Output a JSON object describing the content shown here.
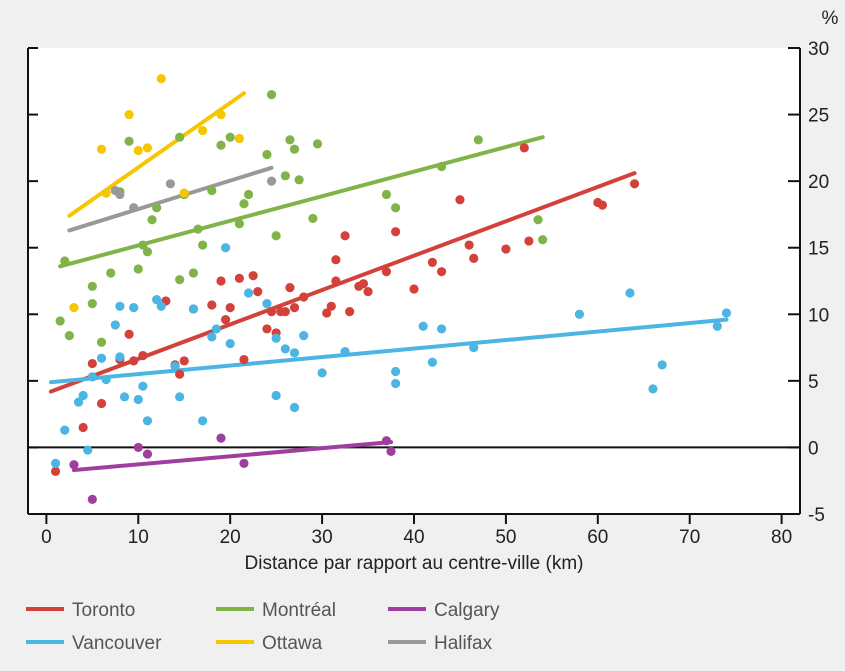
{
  "chart_data": {
    "type": "scatter",
    "xlabel": "Distance par rapport au centre-ville (km)",
    "ylabel": "%",
    "xlim": [
      -2,
      82
    ],
    "ylim": [
      -5,
      30
    ],
    "xticks": [
      0,
      10,
      20,
      30,
      40,
      50,
      60,
      70,
      80
    ],
    "yticks": [
      -5,
      0,
      5,
      10,
      15,
      20,
      25,
      30
    ],
    "grid": false,
    "legend_position": "bottom",
    "series": [
      {
        "name": "Toronto",
        "color": "#d2423b",
        "points": [
          [
            1,
            -1.8
          ],
          [
            4,
            1.5
          ],
          [
            5,
            6.3
          ],
          [
            6,
            3.3
          ],
          [
            8,
            6.6
          ],
          [
            9,
            8.5
          ],
          [
            9.5,
            6.5
          ],
          [
            10.5,
            6.9
          ],
          [
            13,
            11
          ],
          [
            14,
            6.2
          ],
          [
            14.5,
            5.5
          ],
          [
            15,
            6.5
          ],
          [
            16,
            10.4
          ],
          [
            18,
            10.7
          ],
          [
            19,
            12.5
          ],
          [
            19.5,
            9.6
          ],
          [
            20,
            10.5
          ],
          [
            21,
            12.7
          ],
          [
            21.5,
            6.6
          ],
          [
            22.5,
            12.9
          ],
          [
            23,
            11.7
          ],
          [
            24,
            8.9
          ],
          [
            24.5,
            10.2
          ],
          [
            25,
            8.6
          ],
          [
            25.5,
            10.2
          ],
          [
            26,
            10.2
          ],
          [
            26.5,
            12
          ],
          [
            27,
            10.5
          ],
          [
            28,
            11.3
          ],
          [
            30.5,
            10.1
          ],
          [
            31,
            10.6
          ],
          [
            31.5,
            14.1
          ],
          [
            31.5,
            12.5
          ],
          [
            32.5,
            15.9
          ],
          [
            33,
            10.2
          ],
          [
            34,
            12.1
          ],
          [
            34.5,
            12.3
          ],
          [
            35,
            11.7
          ],
          [
            37,
            13.2
          ],
          [
            38,
            16.2
          ],
          [
            40,
            11.9
          ],
          [
            42,
            13.9
          ],
          [
            43,
            13.2
          ],
          [
            45,
            18.6
          ],
          [
            46,
            15.2
          ],
          [
            46.5,
            14.2
          ],
          [
            50,
            14.9
          ],
          [
            52,
            22.5
          ],
          [
            52.5,
            15.5
          ],
          [
            60,
            18.4
          ],
          [
            60.5,
            18.2
          ],
          [
            64,
            19.8
          ]
        ],
        "trend": [
          [
            0.5,
            4.2
          ],
          [
            64,
            20.6
          ]
        ]
      },
      {
        "name": "Montréal",
        "color": "#80b348",
        "points": [
          [
            1.5,
            9.5
          ],
          [
            2,
            14
          ],
          [
            2.5,
            8.4
          ],
          [
            5,
            10.8
          ],
          [
            5,
            12.1
          ],
          [
            6,
            7.9
          ],
          [
            7,
            13.1
          ],
          [
            8,
            19.2
          ],
          [
            9,
            23
          ],
          [
            10,
            13.4
          ],
          [
            10.5,
            15.2
          ],
          [
            11,
            14.7
          ],
          [
            11.5,
            17.1
          ],
          [
            12,
            18
          ],
          [
            14.5,
            23.3
          ],
          [
            14.5,
            12.6
          ],
          [
            15,
            19
          ],
          [
            16,
            13.1
          ],
          [
            16.5,
            16.4
          ],
          [
            17,
            15.2
          ],
          [
            18,
            19.3
          ],
          [
            19,
            22.7
          ],
          [
            20,
            23.3
          ],
          [
            21,
            16.8
          ],
          [
            21.5,
            18.3
          ],
          [
            22,
            19
          ],
          [
            24,
            22
          ],
          [
            24.5,
            26.5
          ],
          [
            25,
            15.9
          ],
          [
            26,
            20.4
          ],
          [
            26.5,
            23.1
          ],
          [
            27,
            22.4
          ],
          [
            27.5,
            20.1
          ],
          [
            29,
            17.2
          ],
          [
            29.5,
            22.8
          ],
          [
            37,
            19
          ],
          [
            38,
            18
          ],
          [
            43,
            21.1
          ],
          [
            47,
            23.1
          ],
          [
            53.5,
            17.1
          ],
          [
            54,
            15.6
          ]
        ],
        "trend": [
          [
            1.5,
            13.6
          ],
          [
            54,
            23.3
          ]
        ]
      },
      {
        "name": "Calgary",
        "color": "#a03ea0",
        "points": [
          [
            3,
            -1.3
          ],
          [
            5,
            -3.9
          ],
          [
            10,
            0
          ],
          [
            11,
            -0.5
          ],
          [
            19,
            0.7
          ],
          [
            21.5,
            -1.2
          ],
          [
            37,
            0.5
          ],
          [
            37.5,
            -0.3
          ]
        ],
        "trend": [
          [
            3,
            -1.7
          ],
          [
            37.5,
            0.4
          ]
        ]
      },
      {
        "name": "Vancouver",
        "color": "#4bb5e4",
        "points": [
          [
            1,
            -1.2
          ],
          [
            2,
            1.3
          ],
          [
            3.5,
            3.4
          ],
          [
            4,
            3.9
          ],
          [
            4.5,
            -0.2
          ],
          [
            5,
            5.3
          ],
          [
            6,
            6.7
          ],
          [
            6.5,
            5.1
          ],
          [
            7.5,
            9.2
          ],
          [
            8,
            10.6
          ],
          [
            8,
            6.8
          ],
          [
            8.5,
            3.8
          ],
          [
            9.5,
            10.5
          ],
          [
            10,
            3.6
          ],
          [
            10.5,
            4.6
          ],
          [
            11,
            2
          ],
          [
            12,
            11.1
          ],
          [
            12.5,
            10.6
          ],
          [
            14,
            6.1
          ],
          [
            14.5,
            3.8
          ],
          [
            16,
            10.4
          ],
          [
            17,
            2
          ],
          [
            18,
            8.3
          ],
          [
            18.5,
            8.9
          ],
          [
            19.5,
            15
          ],
          [
            20,
            7.8
          ],
          [
            22,
            11.6
          ],
          [
            24,
            10.8
          ],
          [
            25,
            8.2
          ],
          [
            25,
            3.9
          ],
          [
            26,
            7.4
          ],
          [
            27,
            3
          ],
          [
            27,
            7.1
          ],
          [
            28,
            8.4
          ],
          [
            30,
            5.6
          ],
          [
            32.5,
            7.2
          ],
          [
            38,
            5.7
          ],
          [
            38,
            4.8
          ],
          [
            41,
            9.1
          ],
          [
            42,
            6.4
          ],
          [
            43,
            8.9
          ],
          [
            46.5,
            7.5
          ],
          [
            58,
            10
          ],
          [
            63.5,
            11.6
          ],
          [
            66,
            4.4
          ],
          [
            67,
            6.2
          ],
          [
            73,
            9.1
          ],
          [
            74,
            10.1
          ]
        ],
        "trend": [
          [
            0.5,
            4.9
          ],
          [
            74,
            9.6
          ]
        ]
      },
      {
        "name": "Ottawa",
        "color": "#f6c600",
        "points": [
          [
            3,
            10.5
          ],
          [
            6,
            22.4
          ],
          [
            6.5,
            19.1
          ],
          [
            9,
            25
          ],
          [
            10,
            22.3
          ],
          [
            11,
            22.5
          ],
          [
            12.5,
            27.7
          ],
          [
            15,
            19.1
          ],
          [
            17,
            23.8
          ],
          [
            19,
            25
          ],
          [
            21,
            23.2
          ]
        ],
        "trend": [
          [
            2.5,
            17.4
          ],
          [
            21.5,
            26.6
          ]
        ]
      },
      {
        "name": "Halifax",
        "color": "#999999",
        "points": [
          [
            7.5,
            19.3
          ],
          [
            8,
            19
          ],
          [
            9.5,
            18
          ],
          [
            13.5,
            19.8
          ],
          [
            24.5,
            20
          ]
        ],
        "trend": [
          [
            2.5,
            16.3
          ],
          [
            24.5,
            21
          ]
        ]
      }
    ]
  }
}
